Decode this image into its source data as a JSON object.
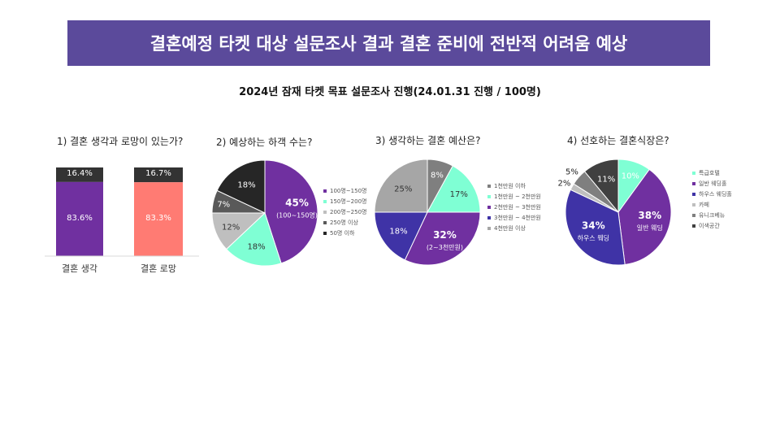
{
  "title": "결혼예정 타켓 대상 설문조사 결과 결혼 준비에 전반적 어려움 예상",
  "subtitle": "2024년 잠재 타켓 목표 설문조사 진행(24.01.31 진행 / 100명)",
  "colors": {
    "banner": "#5b4a9b",
    "dark": "#333333",
    "purple": "#7030a0",
    "salmon": "#ff7b73",
    "violet": "#7030a0",
    "mint": "#7fffd4",
    "lightgray": "#bfbfbf",
    "gray": "#7f7f7f",
    "black": "#262626",
    "navy": "#3f33a6",
    "silver": "#a6a6a6"
  },
  "chart_data": [
    {
      "type": "bar",
      "title": "1) 결혼 생각과 로망이 있는가?",
      "categories": [
        "결혼 생각",
        "결혼 로망"
      ],
      "series": [
        {
          "values": [
            83.6,
            83.3
          ],
          "labels": [
            "83.6%",
            "83.3%"
          ]
        },
        {
          "values": [
            16.4,
            16.7
          ],
          "labels": [
            "16.4%",
            "16.7%"
          ]
        }
      ]
    },
    {
      "type": "pie",
      "title": "2) 예상하는 하객 수는?",
      "slices": [
        {
          "label": "100명~150명",
          "value": 45,
          "text": "45%",
          "sub": "(100~150명)",
          "color": "#7030a0"
        },
        {
          "label": "150명~200명",
          "value": 18,
          "text": "18%",
          "color": "#7fffd4"
        },
        {
          "label": "200명~250명",
          "value": 12,
          "text": "12%",
          "color": "#bfbfbf"
        },
        {
          "label": "250명 이상",
          "value": 7,
          "text": "7%",
          "color": "#595959"
        },
        {
          "label": "50명 이하",
          "value": 18,
          "text": "18%",
          "color": "#262626"
        }
      ]
    },
    {
      "type": "pie",
      "title": "3) 생각하는 결혼 예산은?",
      "slices": [
        {
          "label": "1천만원 이하",
          "value": 8,
          "text": "8%",
          "color": "#7f7f7f"
        },
        {
          "label": "1천만원 ~ 2천만원",
          "value": 17,
          "text": "17%",
          "color": "#7fffd4"
        },
        {
          "label": "2천만원 ~ 3천만원",
          "value": 32,
          "text": "32%",
          "sub": "(2~3천만원)",
          "color": "#7030a0"
        },
        {
          "label": "3천만원 ~ 4천만원",
          "value": 18,
          "text": "18%",
          "color": "#3f33a6"
        },
        {
          "label": "4천만원 이상",
          "value": 25,
          "text": "25%",
          "color": "#a6a6a6"
        }
      ]
    },
    {
      "type": "pie",
      "title": "4) 선호하는 결혼식장은?",
      "slices": [
        {
          "label": "특급호텔",
          "value": 10,
          "text": "10%",
          "color": "#7fffd4"
        },
        {
          "label": "일반 웨딩홀",
          "value": 38,
          "text": "38%",
          "sub": "일반 웨딩",
          "color": "#7030a0"
        },
        {
          "label": "하우스 웨딩홀",
          "value": 34,
          "text": "34%",
          "sub": "하우스 웨딩",
          "color": "#3f33a6"
        },
        {
          "label": "카페",
          "value": 2,
          "text": "2%",
          "color": "#bfbfbf"
        },
        {
          "label": "유니크베뉴",
          "value": 5,
          "text": "5%",
          "color": "#7f7f7f"
        },
        {
          "label": "이색공간",
          "value": 11,
          "text": "11%",
          "color": "#404040"
        }
      ]
    }
  ]
}
